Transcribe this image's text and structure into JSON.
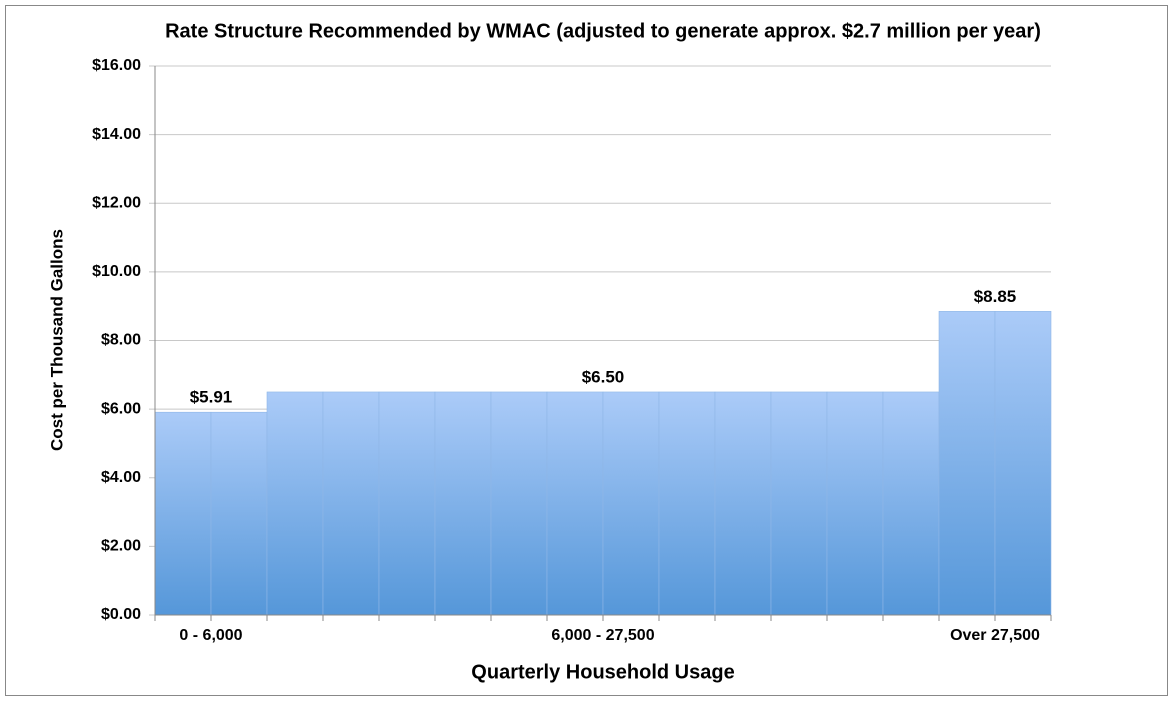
{
  "chart_data": {
    "type": "bar",
    "title": "Rate Structure Recommended by WMAC (adjusted to generate approx. $2.7 million per year)",
    "x_label": "Quarterly Household Usage",
    "y_label": "Cost per Thousand Gallons",
    "categories": [
      null,
      "0 - 6,000",
      null,
      null,
      null,
      null,
      null,
      null,
      "6,000 - 27,500",
      null,
      null,
      null,
      null,
      null,
      null,
      "Over 27,500"
    ],
    "values": [
      5.91,
      5.91,
      6.5,
      6.5,
      6.5,
      6.5,
      6.5,
      6.5,
      6.5,
      6.5,
      6.5,
      6.5,
      6.5,
      6.5,
      8.85,
      8.85
    ],
    "value_labels": [
      null,
      "$5.91",
      null,
      null,
      null,
      null,
      null,
      null,
      "$6.50",
      null,
      null,
      null,
      null,
      null,
      null,
      "$8.85"
    ],
    "color": [
      "#abcbf8",
      "#5597d9"
    ],
    "ylim": [
      0,
      16
    ],
    "yticks": [
      {
        "value": 0,
        "label": "$0.00"
      },
      {
        "value": 2,
        "label": "$2.00"
      },
      {
        "value": 4,
        "label": "$4.00"
      },
      {
        "value": 6,
        "label": "$6.00"
      },
      {
        "value": 8,
        "label": "$8.00"
      },
      {
        "value": 10,
        "label": "$10.00"
      },
      {
        "value": 12,
        "label": "$12.00"
      },
      {
        "value": 14,
        "label": "$14.00"
      },
      {
        "value": 16,
        "label": "$16.00"
      }
    ],
    "grid": true
  }
}
